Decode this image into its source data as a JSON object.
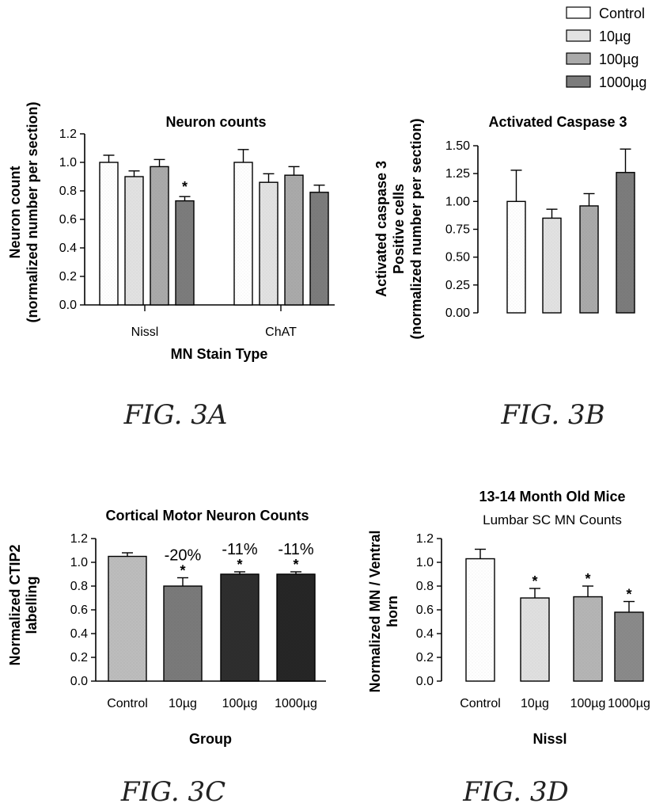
{
  "colors": {
    "Control": "#ffffff",
    "10µg": "#e2e2e2",
    "100µg": "#aaaaaa",
    "1000µg": "#7c7c7c",
    "c_control": "#bdbdbd",
    "c_10": "#7a7a7a",
    "c_100": "#2e2e2e",
    "c_1000": "#262626",
    "d_control": "#ffffff",
    "d_10": "#e0e0e0",
    "d_100": "#b5b5b5",
    "d_1000": "#8a8a8a"
  },
  "legend": [
    "Control",
    "10µg",
    "100µg",
    "1000µg"
  ],
  "fig_labels": {
    "a": "FIG. 3A",
    "b": "FIG. 3B",
    "c": "FIG. 3C",
    "d": "FIG. 3D"
  },
  "chart_data": [
    {
      "id": "3A",
      "type": "bar",
      "title": "Neuron counts",
      "ylabel_lines": [
        "Neuron count",
        "(normalized number per section)"
      ],
      "xlabel": "MN Stain Type",
      "ylim": [
        0,
        1.2
      ],
      "yticks": [
        "0.0",
        "0.2",
        "0.4",
        "0.6",
        "0.8",
        "1.0",
        "1.2"
      ],
      "categories": [
        "Nissl",
        "ChAT"
      ],
      "series": [
        {
          "name": "Control",
          "values": [
            1.0,
            1.0
          ],
          "errors": [
            0.05,
            0.09
          ]
        },
        {
          "name": "10µg",
          "values": [
            0.9,
            0.86
          ],
          "errors": [
            0.04,
            0.06
          ]
        },
        {
          "name": "100µg",
          "values": [
            0.97,
            0.91
          ],
          "errors": [
            0.05,
            0.06
          ]
        },
        {
          "name": "1000µg",
          "values": [
            0.73,
            0.79
          ],
          "errors": [
            0.03,
            0.05
          ]
        }
      ],
      "stars": [
        [
          false,
          false,
          false,
          true
        ],
        [
          false,
          false,
          false,
          false
        ]
      ],
      "legend": "top-right"
    },
    {
      "id": "3B",
      "type": "bar",
      "title": "Activated Caspase 3",
      "ylabel_lines": [
        "Activated caspase 3",
        "Positive cells",
        "(normalized number per section)"
      ],
      "xlabel": "",
      "ylim": [
        0,
        1.5
      ],
      "yticks": [
        "0.00",
        "0.25",
        "0.50",
        "0.75",
        "1.00",
        "1.25",
        "1.50"
      ],
      "categories": [
        "Control",
        "10µg",
        "100µg",
        "1000µg"
      ],
      "values": [
        1.0,
        0.85,
        0.96,
        1.26
      ],
      "errors": [
        0.28,
        0.08,
        0.11,
        0.21
      ]
    },
    {
      "id": "3C",
      "type": "bar",
      "title": "Cortical Motor Neuron Counts",
      "ylabel_lines": [
        "Normalized CTIP2",
        "labelling"
      ],
      "xlabel": "Group",
      "ylim": [
        0,
        1.2
      ],
      "yticks": [
        "0.0",
        "0.2",
        "0.4",
        "0.6",
        "0.8",
        "1.0",
        "1.2"
      ],
      "categories": [
        "Control",
        "10µg",
        "100µg",
        "1000µg"
      ],
      "values": [
        1.05,
        0.8,
        0.9,
        0.9
      ],
      "errors": [
        0.03,
        0.07,
        0.02,
        0.02
      ],
      "annotations": [
        "",
        "-20%",
        "-11%",
        "-11%"
      ],
      "stars": [
        false,
        true,
        true,
        true
      ]
    },
    {
      "id": "3D",
      "type": "bar",
      "title": "13-14 Month Old Mice",
      "subtitle": "Lumbar SC MN Counts",
      "ylabel_lines": [
        "Normalized MN / Ventral",
        "horn"
      ],
      "xlabel": "Nissl",
      "ylim": [
        0,
        1.2
      ],
      "yticks": [
        "0.0",
        "0.2",
        "0.4",
        "0.6",
        "0.8",
        "1.0",
        "1.2"
      ],
      "categories": [
        "Control",
        "10µg",
        "100µg",
        "1000µg"
      ],
      "values": [
        1.03,
        0.7,
        0.71,
        0.58
      ],
      "errors": [
        0.08,
        0.08,
        0.09,
        0.09
      ],
      "stars": [
        false,
        true,
        true,
        true
      ]
    }
  ]
}
